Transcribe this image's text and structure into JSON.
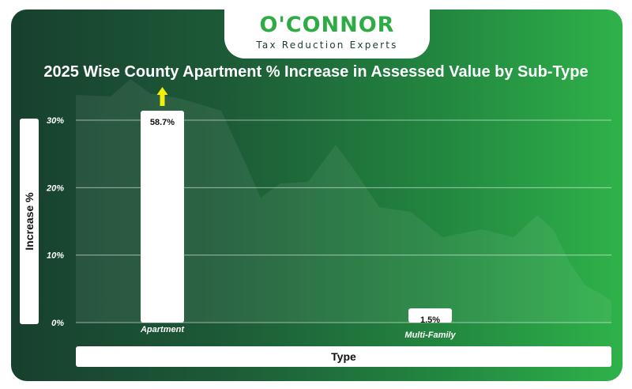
{
  "brand": {
    "name": "O'CONNOR",
    "tagline": "Tax Reduction Experts"
  },
  "colors": {
    "background_dark": "#17402e",
    "background_bright": "#2fb24a",
    "brand_green": "#2eab45",
    "bar_fill": "#ffffff",
    "arrow": "#f2ef0a"
  },
  "chart_data": {
    "type": "bar",
    "title": "2025 Wise County Apartment % Increase in Assessed Value by Sub-Type",
    "xlabel": "Type",
    "ylabel": "Increase %",
    "categories": [
      "Apartment",
      "Multi-Family"
    ],
    "values": [
      58.7,
      1.5
    ],
    "data_labels": [
      "58.7%",
      "1.5%"
    ],
    "yticks": [
      "0%",
      "10%",
      "20%",
      "30%"
    ],
    "ytick_values": [
      0,
      10,
      20,
      30
    ],
    "ylim": [
      0,
      30
    ],
    "clipped_above_axis": [
      true,
      false
    ],
    "grid": true,
    "legend": "none"
  }
}
